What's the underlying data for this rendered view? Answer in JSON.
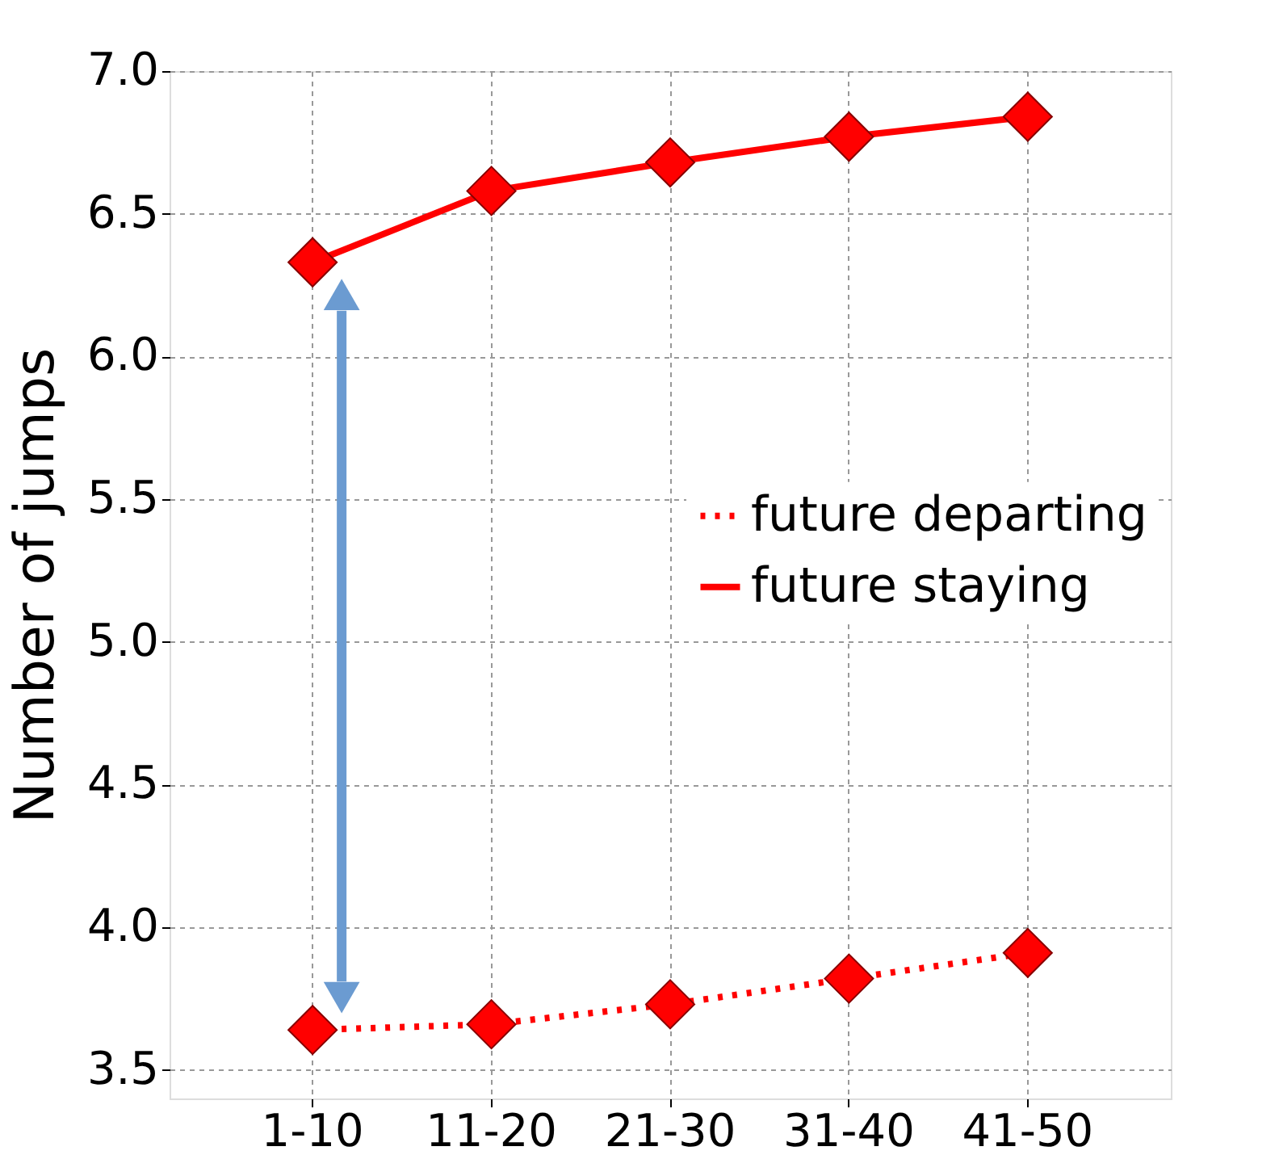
{
  "chart_data": {
    "type": "line",
    "ylabel": "Number of jumps",
    "categories": [
      "1-10",
      "11-20",
      "21-30",
      "31-40",
      "41-50"
    ],
    "series": [
      {
        "name": "future departing",
        "color": "#ff0000",
        "values": [
          3.64,
          3.66,
          3.73,
          3.82,
          3.91
        ],
        "line_style": "dotted"
      },
      {
        "name": "future staying",
        "color": "#ff0000",
        "values": [
          6.33,
          6.58,
          6.68,
          6.77,
          6.84
        ],
        "line_style": "solid"
      }
    ],
    "ylim": [
      3.4,
      7.0
    ],
    "yticks": [
      3.5,
      {
        "value": 4,
        "label": "4.0"
      },
      4.5,
      {
        "value": 5,
        "label": "5.0"
      },
      5.5,
      {
        "value": 6,
        "label": "6.0"
      },
      6.5,
      {
        "value": 7,
        "label": "7.0"
      }
    ],
    "grid": true,
    "legend": "right",
    "marker": "diamond"
  }
}
